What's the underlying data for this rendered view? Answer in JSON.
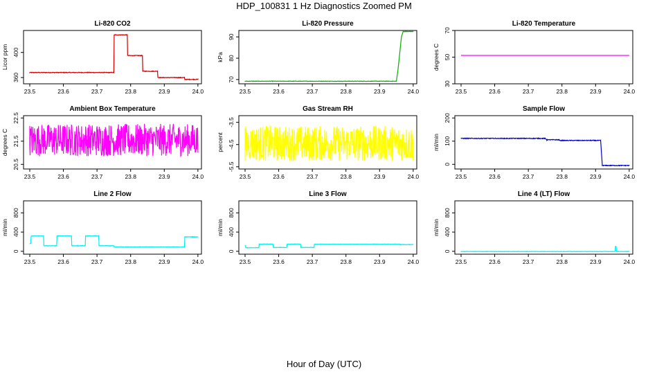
{
  "title": "HDP_100831  1 Hz Diagnostics Zoomed PM",
  "xlabel": "Hour of Day (UTC)",
  "chart_data": [
    {
      "type": "line",
      "title": "Li-820 CO2",
      "ylabel": "Licor ppm",
      "color": "#d00000",
      "xlim": [
        23.5,
        24.0
      ],
      "ylim": [
        350,
        435
      ],
      "xticks": [
        "23.5",
        "23.6",
        "23.7",
        "23.8",
        "23.9",
        "24.0"
      ],
      "xtick_values": [
        23.5,
        23.6,
        23.7,
        23.8,
        23.9,
        24.0
      ],
      "yticks": [
        "360",
        "400"
      ],
      "ytick_values": [
        360,
        400
      ],
      "noise": 0.5,
      "series": [
        {
          "x": [
            23.5,
            23.75,
            23.751,
            23.79,
            23.791,
            23.835,
            23.836,
            23.88,
            23.881,
            23.96,
            23.961,
            24.0
          ],
          "y": [
            368,
            368,
            428,
            428,
            395,
            395,
            370,
            370,
            360,
            360,
            357,
            357
          ]
        }
      ]
    },
    {
      "type": "line",
      "title": "Li-820 Pressure",
      "ylabel": "kPa",
      "color": "#00b000",
      "xlim": [
        23.5,
        24.0
      ],
      "ylim": [
        68,
        93
      ],
      "xticks": [
        "23.5",
        "23.6",
        "23.7",
        "23.8",
        "23.9",
        "24.0"
      ],
      "xtick_values": [
        23.5,
        23.6,
        23.7,
        23.8,
        23.9,
        24.0
      ],
      "yticks": [
        "70",
        "80",
        "90"
      ],
      "ytick_values": [
        70,
        80,
        90
      ],
      "noise": 0.1,
      "series": [
        {
          "x": [
            23.5,
            23.95,
            23.955,
            23.965,
            23.97,
            24.0
          ],
          "y": [
            69.2,
            69.2,
            75,
            90,
            92.5,
            92.5
          ]
        }
      ]
    },
    {
      "type": "line",
      "title": "Li-820 Temperature",
      "ylabel": "degrees C",
      "color": "#ff00ff",
      "xlim": [
        23.5,
        24.0
      ],
      "ylim": [
        30,
        70
      ],
      "xticks": [
        "23.5",
        "23.6",
        "23.7",
        "23.8",
        "23.9",
        "24.0"
      ],
      "xtick_values": [
        23.5,
        23.6,
        23.7,
        23.8,
        23.9,
        24.0
      ],
      "yticks": [
        "30",
        "50",
        "70"
      ],
      "ytick_values": [
        30,
        50,
        70
      ],
      "noise": 0,
      "series": [
        {
          "x": [
            23.5,
            24.0
          ],
          "y": [
            51.3,
            51.3
          ]
        }
      ]
    },
    {
      "type": "line",
      "title": "Ambient Box Temperature",
      "ylabel": "degrees C",
      "color": "#ff00ff",
      "xlim": [
        23.5,
        24.0
      ],
      "ylim": [
        20.3,
        22.6
      ],
      "xticks": [
        "23.5",
        "23.6",
        "23.7",
        "23.8",
        "23.9",
        "24.0"
      ],
      "xtick_values": [
        23.5,
        23.6,
        23.7,
        23.8,
        23.9,
        24.0
      ],
      "yticks": [
        "20.5",
        "21.5",
        "22.5"
      ],
      "ytick_values": [
        20.5,
        21.5,
        22.5
      ],
      "noise": 0.7,
      "series": [
        {
          "x": [
            23.5,
            24.0
          ],
          "y": [
            21.55,
            21.55
          ]
        }
      ]
    },
    {
      "type": "line",
      "title": "Gas Stream RH",
      "ylabel": "percent",
      "color": "#ffff00",
      "xlim": [
        23.5,
        24.0
      ],
      "ylim": [
        -5.6,
        -3.2
      ],
      "xticks": [
        "23.5",
        "23.6",
        "23.7",
        "23.8",
        "23.9",
        "24.0"
      ],
      "xtick_values": [
        23.5,
        23.6,
        23.7,
        23.8,
        23.9,
        24.0
      ],
      "yticks": [
        "-5.5",
        "-4.5",
        "-3.5"
      ],
      "ytick_values": [
        -5.5,
        -4.5,
        -3.5
      ],
      "noise": 0.8,
      "series": [
        {
          "x": [
            23.5,
            24.0
          ],
          "y": [
            -4.45,
            -4.45
          ]
        }
      ]
    },
    {
      "type": "line",
      "title": "Sample Flow",
      "ylabel": "ml/min",
      "color": "#0000cc",
      "xlim": [
        23.5,
        24.0
      ],
      "ylim": [
        -20,
        210
      ],
      "xticks": [
        "23.5",
        "23.6",
        "23.7",
        "23.8",
        "23.9",
        "24.0"
      ],
      "xtick_values": [
        23.5,
        23.6,
        23.7,
        23.8,
        23.9,
        24.0
      ],
      "yticks": [
        "0",
        "100",
        "200"
      ],
      "ytick_values": [
        0,
        100,
        200
      ],
      "noise": 1.5,
      "series": [
        {
          "x": [
            23.5,
            23.75,
            23.755,
            23.79,
            23.795,
            23.915,
            23.92,
            24.0
          ],
          "y": [
            112,
            112,
            106,
            106,
            103,
            103,
            -5,
            -5
          ]
        }
      ]
    },
    {
      "type": "line",
      "title": "Line 2 Flow",
      "ylabel": "ml/min",
      "color": "#00eeee",
      "xlim": [
        23.5,
        24.0
      ],
      "ylim": [
        -60,
        1050
      ],
      "xticks": [
        "23.5",
        "23.6",
        "23.7",
        "23.8",
        "23.9",
        "24.0"
      ],
      "xtick_values": [
        23.5,
        23.6,
        23.7,
        23.8,
        23.9,
        24.0
      ],
      "yticks": [
        "0",
        "400",
        "800"
      ],
      "ytick_values": [
        0,
        400,
        800
      ],
      "noise": 5,
      "series": [
        {
          "x": [
            23.5,
            23.503,
            23.504,
            23.541,
            23.542,
            23.58,
            23.581,
            23.624,
            23.625,
            23.665,
            23.666,
            23.705,
            23.706,
            23.75,
            23.751,
            23.96,
            23.961,
            24.0
          ],
          "y": [
            160,
            160,
            320,
            320,
            115,
            115,
            320,
            320,
            115,
            115,
            320,
            320,
            115,
            115,
            90,
            90,
            300,
            300
          ]
        }
      ]
    },
    {
      "type": "line",
      "title": "Line 3 Flow",
      "ylabel": "ml/min",
      "color": "#00eeee",
      "xlim": [
        23.5,
        24.0
      ],
      "ylim": [
        -60,
        1050
      ],
      "xticks": [
        "23.5",
        "23.6",
        "23.7",
        "23.8",
        "23.9",
        "24.0"
      ],
      "xtick_values": [
        23.5,
        23.6,
        23.7,
        23.8,
        23.9,
        24.0
      ],
      "yticks": [
        "0",
        "400",
        "800"
      ],
      "ytick_values": [
        0,
        400,
        800
      ],
      "noise": 4,
      "series": [
        {
          "x": [
            23.5,
            23.501,
            23.502,
            23.541,
            23.542,
            23.583,
            23.584,
            23.624,
            23.625,
            23.665,
            23.666,
            23.705,
            23.706,
            23.96,
            23.961,
            24.0
          ],
          "y": [
            120,
            120,
            75,
            75,
            150,
            150,
            80,
            80,
            150,
            150,
            80,
            80,
            148,
            148,
            140,
            140
          ]
        }
      ]
    },
    {
      "type": "line",
      "title": "Line 4 (LT) Flow",
      "ylabel": "ml/min",
      "color": "#00eeee",
      "xlim": [
        23.5,
        24.0
      ],
      "ylim": [
        -60,
        1050
      ],
      "xticks": [
        "23.5",
        "23.6",
        "23.7",
        "23.8",
        "23.9",
        "24.0"
      ],
      "xtick_values": [
        23.5,
        23.6,
        23.7,
        23.8,
        23.9,
        24.0
      ],
      "yticks": [
        "0",
        "400",
        "800"
      ],
      "ytick_values": [
        0,
        400,
        800
      ],
      "noise": 3,
      "series": [
        {
          "x": [
            23.5,
            23.958,
            23.959,
            23.961,
            23.962,
            24.0
          ],
          "y": [
            -5,
            -5,
            100,
            100,
            -5,
            -5
          ]
        }
      ]
    }
  ]
}
